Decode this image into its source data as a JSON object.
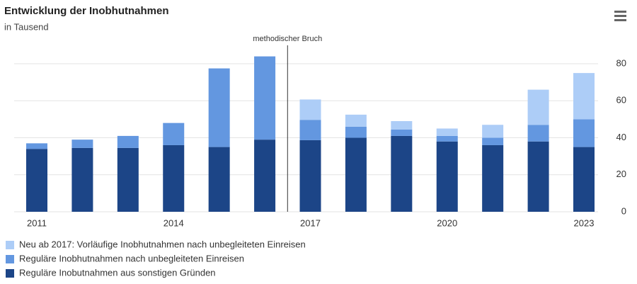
{
  "chart_data": {
    "type": "stacked_bar",
    "title": "Entwicklung der Inobhutnahmen",
    "subtitle": "in Tausend",
    "annotation": "methodischer Bruch",
    "categories": [
      "2011",
      null,
      null,
      "2014",
      null,
      null,
      "2017",
      null,
      null,
      "2020",
      null,
      null,
      "2023"
    ],
    "series": [
      {
        "name": "Reguläre Inobutnahmen aus sonstigen Gründen",
        "color": "#1c4587",
        "values": [
          34,
          34.5,
          34.5,
          36,
          35,
          39,
          38.7,
          40,
          41,
          38,
          36,
          38,
          35
        ]
      },
      {
        "name": "Reguläre Inobhutnahmen nach unbegleiteten Einreisen",
        "color": "#6397e0",
        "values": [
          3,
          4.5,
          6.5,
          12,
          42.5,
          45,
          11,
          6,
          3.5,
          3,
          4,
          9,
          15
        ]
      },
      {
        "name": "Neu ab 2017: Vorläufige Inobhutnahmen nach unbegleiteten Einreisen",
        "color": "#adcdf7",
        "values": [
          null,
          null,
          null,
          null,
          null,
          null,
          11,
          6.5,
          4.5,
          4,
          7,
          19,
          25
        ]
      }
    ],
    "ylim": [
      0,
      85
    ],
    "yticks": [
      0,
      20,
      40,
      60,
      80
    ],
    "grid": true,
    "legend": "bottom"
  }
}
